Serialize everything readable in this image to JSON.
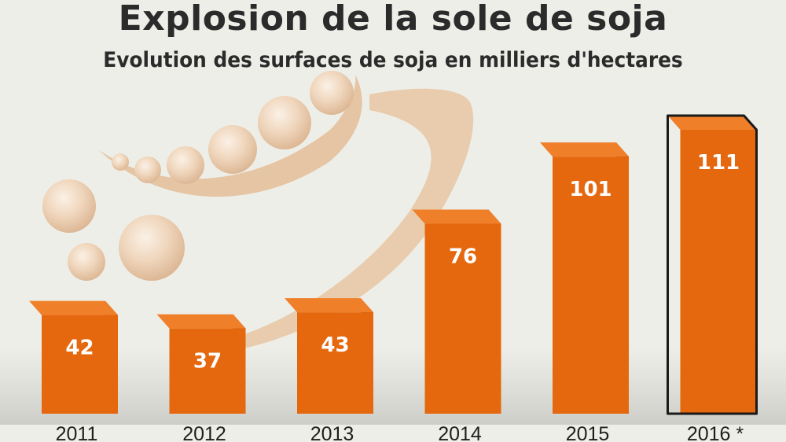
{
  "title": "Explosion de la sole de soja",
  "subtitle": "Evolution des surfaces de soja en milliers d'hectares",
  "colors": {
    "bar_front": "#e5670e",
    "bar_top": "#f07f2a",
    "bar_side": "#b2480a",
    "background": "#eeeee8",
    "illustration": "#e8c8a6"
  },
  "chart_data": {
    "type": "bar",
    "title": "Explosion de la sole de soja",
    "subtitle": "Evolution des surfaces de soja en milliers d'hectares",
    "xlabel": "",
    "ylabel": "",
    "categories": [
      "2011",
      "2012",
      "2013",
      "2014",
      "2015",
      "2016 *"
    ],
    "values": [
      42,
      37,
      43,
      76,
      101,
      111
    ],
    "ylim": [
      0,
      111
    ],
    "highlighted_category": "2016 *",
    "grid": false,
    "legend": "none"
  }
}
